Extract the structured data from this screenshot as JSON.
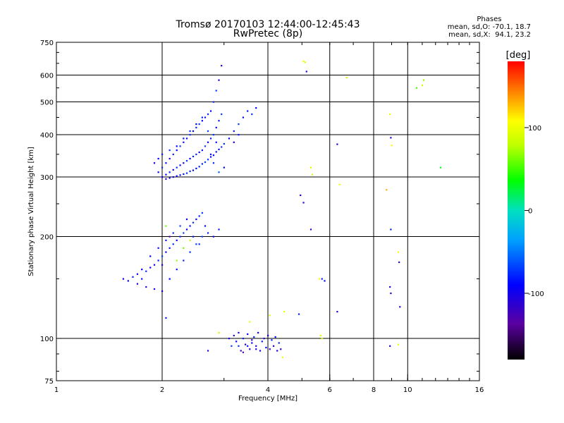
{
  "header": {
    "title_line1": "Tromsø 20170103 12:44:00-12:45:43",
    "title_line2": "RwPretec (8p)"
  },
  "stats": {
    "heading": "Phases",
    "line_o": "mean, sd,O: -70.1, 18.7",
    "line_x": "mean, sd,X:  94.1, 23.2"
  },
  "colorbar": {
    "unit": "[deg]",
    "min": -180,
    "max": 180,
    "ticks": [
      {
        "value": 100,
        "label": "100"
      },
      {
        "value": 0,
        "label": "0"
      },
      {
        "value": -100,
        "label": "-100"
      }
    ]
  },
  "chart_data": {
    "type": "scatter",
    "title": "Tromsø 20170103 12:44:00-12:45:43",
    "subtitle": "RwPretec (8p)",
    "xlabel": "Frequency [MHz]",
    "ylabel": "Stationary phase Virtual Height [km]",
    "xscale": "log",
    "yscale": "log",
    "xlim": [
      1,
      16
    ],
    "ylim": [
      75,
      750
    ],
    "x_ticks": [
      {
        "value": 1,
        "label": "1"
      },
      {
        "value": 2,
        "label": "2"
      },
      {
        "value": 4,
        "label": "4"
      },
      {
        "value": 6,
        "label": "6"
      },
      {
        "value": 8,
        "label": "8"
      },
      {
        "value": 10,
        "label": "10"
      },
      {
        "value": 16,
        "label": "16"
      }
    ],
    "x_gridlines": [
      2,
      4,
      6,
      8,
      10
    ],
    "y_ticks": [
      {
        "value": 75,
        "label": "75"
      },
      {
        "value": 100,
        "label": "100"
      },
      {
        "value": 200,
        "label": "200"
      },
      {
        "value": 300,
        "label": "300"
      },
      {
        "value": 400,
        "label": "400"
      },
      {
        "value": 500,
        "label": "500"
      },
      {
        "value": 600,
        "label": "600"
      },
      {
        "value": 750,
        "label": "750"
      }
    ],
    "y_gridlines": [
      100,
      200,
      300,
      400,
      500,
      600
    ],
    "color_variable": "phase [deg]",
    "points": [
      [
        2.0,
        300,
        -100
      ],
      [
        2.05,
        305,
        -90
      ],
      [
        2.1,
        310,
        -80
      ],
      [
        2.15,
        315,
        -95
      ],
      [
        2.2,
        320,
        -75
      ],
      [
        2.25,
        325,
        -85
      ],
      [
        2.3,
        330,
        -100
      ],
      [
        2.35,
        335,
        -70
      ],
      [
        2.4,
        340,
        -90
      ],
      [
        2.45,
        345,
        -80
      ],
      [
        2.5,
        350,
        -75
      ],
      [
        2.55,
        355,
        -95
      ],
      [
        2.6,
        360,
        -85
      ],
      [
        2.65,
        370,
        -70
      ],
      [
        2.7,
        380,
        -90
      ],
      [
        2.75,
        390,
        -80
      ],
      [
        2.8,
        400,
        -75
      ],
      [
        2.85,
        420,
        -95
      ],
      [
        2.9,
        440,
        -85
      ],
      [
        2.95,
        460,
        -70
      ],
      [
        1.95,
        310,
        -95
      ],
      [
        2.0,
        320,
        -75
      ],
      [
        2.05,
        330,
        -85
      ],
      [
        2.1,
        340,
        -100
      ],
      [
        2.15,
        350,
        -80
      ],
      [
        2.2,
        360,
        -90
      ],
      [
        2.25,
        370,
        -70
      ],
      [
        2.3,
        380,
        -85
      ],
      [
        2.35,
        390,
        -95
      ],
      [
        2.4,
        400,
        -75
      ],
      [
        2.45,
        410,
        -90
      ],
      [
        2.5,
        420,
        -80
      ],
      [
        2.55,
        430,
        -70
      ],
      [
        2.6,
        440,
        -95
      ],
      [
        2.65,
        450,
        -85
      ],
      [
        2.7,
        460,
        -75
      ],
      [
        2.75,
        470,
        -90
      ],
      [
        2.8,
        500,
        -80
      ],
      [
        2.85,
        540,
        -70
      ],
      [
        2.9,
        580,
        -100
      ],
      [
        2.95,
        640,
        -110
      ],
      [
        2.2,
        302,
        -95
      ],
      [
        2.3,
        306,
        -85
      ],
      [
        2.4,
        312,
        -75
      ],
      [
        2.5,
        318,
        -90
      ],
      [
        2.6,
        328,
        -80
      ],
      [
        2.7,
        338,
        -70
      ],
      [
        2.8,
        348,
        -95
      ],
      [
        2.9,
        362,
        -85
      ],
      [
        3.0,
        376,
        -75
      ],
      [
        3.1,
        390,
        -90
      ],
      [
        3.2,
        410,
        -80
      ],
      [
        3.3,
        430,
        -70
      ],
      [
        3.4,
        450,
        -95
      ],
      [
        3.5,
        470,
        -85
      ],
      [
        3.6,
        460,
        -75
      ],
      [
        3.7,
        480,
        -90
      ],
      [
        3.2,
        380,
        -100
      ],
      [
        3.3,
        400,
        -85
      ],
      [
        2.05,
        296,
        -115
      ],
      [
        2.1,
        298,
        -105
      ],
      [
        2.15,
        300,
        -95
      ],
      [
        2.25,
        304,
        -85
      ],
      [
        2.35,
        308,
        -75
      ],
      [
        2.45,
        314,
        -90
      ],
      [
        2.55,
        322,
        -80
      ],
      [
        2.65,
        332,
        -70
      ],
      [
        2.75,
        344,
        -95
      ],
      [
        2.85,
        356,
        -85
      ],
      [
        2.95,
        368,
        -75
      ],
      [
        1.9,
        330,
        -100
      ],
      [
        1.95,
        340,
        -90
      ],
      [
        2.0,
        350,
        -80
      ],
      [
        2.1,
        360,
        -70
      ],
      [
        2.2,
        370,
        -95
      ],
      [
        2.3,
        390,
        -85
      ],
      [
        2.4,
        410,
        -75
      ],
      [
        2.5,
        430,
        -90
      ],
      [
        2.6,
        450,
        -80
      ],
      [
        2.7,
        410,
        -70
      ],
      [
        2.75,
        350,
        -95
      ],
      [
        2.85,
        380,
        -85
      ],
      [
        2.8,
        330,
        -75
      ],
      [
        2.9,
        310,
        -60
      ],
      [
        3.0,
        320,
        -90
      ],
      [
        1.55,
        150,
        -100
      ],
      [
        1.6,
        148,
        -90
      ],
      [
        1.65,
        152,
        -80
      ],
      [
        1.7,
        155,
        -95
      ],
      [
        1.75,
        150,
        -85
      ],
      [
        1.8,
        158,
        -75
      ],
      [
        1.85,
        162,
        -90
      ],
      [
        1.9,
        165,
        -100
      ],
      [
        1.95,
        170,
        -80
      ],
      [
        2.0,
        175,
        -70
      ],
      [
        2.05,
        180,
        -90
      ],
      [
        2.1,
        185,
        -85
      ],
      [
        2.15,
        190,
        -75
      ],
      [
        2.2,
        195,
        -95
      ],
      [
        2.25,
        200,
        -80
      ],
      [
        2.3,
        205,
        -70
      ],
      [
        2.35,
        210,
        -90
      ],
      [
        2.4,
        215,
        -85
      ],
      [
        2.45,
        220,
        -75
      ],
      [
        2.5,
        225,
        -95
      ],
      [
        2.55,
        230,
        -80
      ],
      [
        2.6,
        235,
        -70
      ],
      [
        1.7,
        145,
        -110
      ],
      [
        1.8,
        142,
        -105
      ],
      [
        1.9,
        140,
        -100
      ],
      [
        2.0,
        138,
        -95
      ],
      [
        2.1,
        150,
        -90
      ],
      [
        2.2,
        160,
        -85
      ],
      [
        2.3,
        170,
        -80
      ],
      [
        2.4,
        180,
        -75
      ],
      [
        2.5,
        190,
        -70
      ],
      [
        2.6,
        200,
        -65
      ],
      [
        2.7,
        205,
        -80
      ],
      [
        2.8,
        200,
        -90
      ],
      [
        2.9,
        210,
        -85
      ],
      [
        1.75,
        160,
        -95
      ],
      [
        1.85,
        175,
        -90
      ],
      [
        1.95,
        185,
        -85
      ],
      [
        2.05,
        195,
        -80
      ],
      [
        2.15,
        205,
        -75
      ],
      [
        2.25,
        215,
        -70
      ],
      [
        2.35,
        225,
        -95
      ],
      [
        2.45,
        200,
        -85
      ],
      [
        2.55,
        190,
        -75
      ],
      [
        2.65,
        215,
        -90
      ],
      [
        2.2,
        170,
        70
      ],
      [
        2.3,
        185,
        60
      ],
      [
        2.4,
        195,
        80
      ],
      [
        2.05,
        215,
        60
      ],
      [
        2.1,
        200,
        -130
      ],
      [
        2.0,
        165,
        -100
      ],
      [
        2.1,
        150,
        -80
      ],
      [
        2.05,
        115,
        -80
      ],
      [
        2.7,
        92,
        -110
      ],
      [
        2.9,
        104,
        80
      ],
      [
        3.1,
        100,
        -100
      ],
      [
        3.15,
        95,
        -70
      ],
      [
        3.2,
        102,
        -110
      ],
      [
        3.25,
        98,
        -90
      ],
      [
        3.3,
        104,
        -100
      ],
      [
        3.35,
        92,
        -120
      ],
      [
        3.4,
        100,
        -80
      ],
      [
        3.45,
        96,
        -110
      ],
      [
        3.5,
        103,
        -90
      ],
      [
        3.55,
        93,
        -100
      ],
      [
        3.6,
        99,
        -120
      ],
      [
        3.65,
        101,
        -80
      ],
      [
        3.7,
        95,
        -110
      ],
      [
        3.75,
        104,
        -90
      ],
      [
        3.8,
        92,
        -100
      ],
      [
        3.85,
        98,
        -80
      ],
      [
        3.9,
        100,
        -110
      ],
      [
        3.95,
        94,
        -90
      ],
      [
        4.0,
        102,
        -100
      ],
      [
        4.05,
        93,
        -120
      ],
      [
        4.1,
        99,
        -80
      ],
      [
        4.15,
        95,
        -110
      ],
      [
        4.2,
        101,
        -90
      ],
      [
        4.25,
        92,
        -100
      ],
      [
        4.3,
        97,
        -80
      ],
      [
        4.35,
        93,
        -120
      ],
      [
        3.4,
        91,
        -130
      ],
      [
        3.5,
        95,
        -85
      ],
      [
        3.6,
        97,
        -95
      ],
      [
        3.3,
        95,
        -75
      ],
      [
        3.7,
        93,
        -105
      ],
      [
        4.4,
        88,
        100
      ],
      [
        3.55,
        112,
        100
      ],
      [
        4.05,
        117,
        100
      ],
      [
        4.45,
        120,
        100
      ],
      [
        4.95,
        265,
        -100
      ],
      [
        5.05,
        252,
        -110
      ],
      [
        4.9,
        118,
        -80
      ],
      [
        5.05,
        660,
        100
      ],
      [
        5.1,
        655,
        90
      ],
      [
        5.15,
        615,
        -110
      ],
      [
        5.3,
        320,
        90
      ],
      [
        5.35,
        305,
        80
      ],
      [
        5.3,
        210,
        -120
      ],
      [
        5.6,
        150,
        110
      ],
      [
        5.7,
        150,
        -80
      ],
      [
        5.8,
        148,
        -90
      ],
      [
        5.65,
        102,
        90
      ],
      [
        5.7,
        100,
        100
      ],
      [
        6.3,
        375,
        -110
      ],
      [
        6.3,
        120,
        -110
      ],
      [
        6.4,
        285,
        100
      ],
      [
        6.7,
        590,
        80
      ],
      [
        8.7,
        275,
        130
      ],
      [
        8.9,
        460,
        100
      ],
      [
        8.95,
        392,
        -100
      ],
      [
        9.0,
        372,
        110
      ],
      [
        8.95,
        210,
        -80
      ],
      [
        8.9,
        142,
        -110
      ],
      [
        8.95,
        136,
        -110
      ],
      [
        9.4,
        180,
        110
      ],
      [
        9.45,
        168,
        -110
      ],
      [
        9.5,
        124,
        -110
      ],
      [
        8.9,
        95,
        -120
      ],
      [
        9.4,
        96,
        100
      ],
      [
        10.6,
        550,
        50
      ],
      [
        11.1,
        580,
        70
      ],
      [
        11.0,
        560,
        80
      ],
      [
        12.4,
        320,
        30
      ]
    ]
  }
}
